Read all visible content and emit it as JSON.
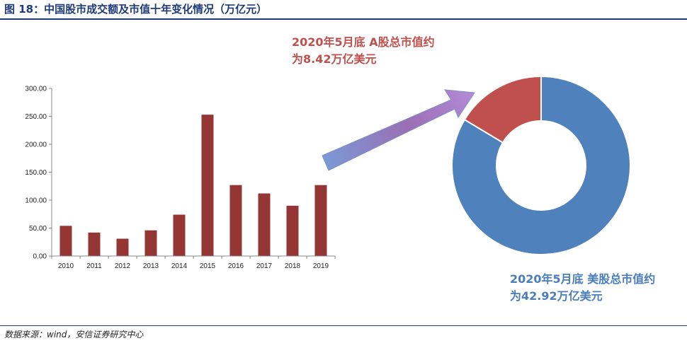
{
  "header": {
    "title": "图 18：中国股市成交额及市值十年变化情况（万亿元）"
  },
  "footer": {
    "source": "数据来源：wind，安信证券研究中心"
  },
  "colors": {
    "bar": "#943634",
    "a_share": "#c0504d",
    "us": "#4f81bd",
    "title": "#1f3a78"
  },
  "annotations": {
    "a_share_line1": "2020年5月底 A股总市值约",
    "a_share_line2": "为8.42万亿美元",
    "us_line1": "2020年5月底 美股总市值约",
    "us_line2": "为42.92万亿美元"
  },
  "chart_data": [
    {
      "type": "bar",
      "categories": [
        "2010",
        "2011",
        "2012",
        "2013",
        "2014",
        "2015",
        "2016",
        "2017",
        "2018",
        "2019"
      ],
      "values": [
        54,
        42,
        31,
        46,
        74,
        253,
        127,
        112,
        90,
        127
      ],
      "y_ticks": [
        "0.00",
        "50.00",
        "100.00",
        "150.00",
        "200.00",
        "250.00",
        "300.00"
      ],
      "ylim": [
        0,
        300
      ],
      "grid": false
    },
    {
      "type": "pie",
      "labels": [
        "A股总市值",
        "美股总市值"
      ],
      "values": [
        8.42,
        42.92
      ]
    }
  ]
}
